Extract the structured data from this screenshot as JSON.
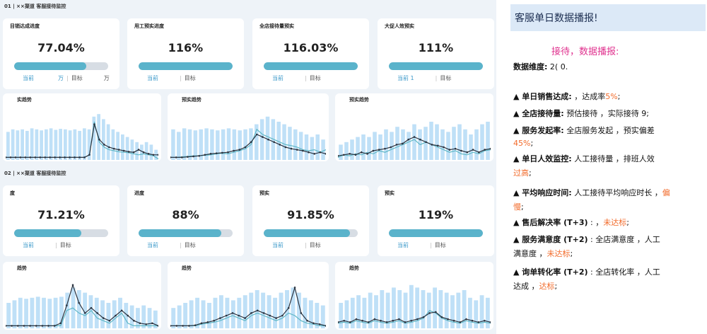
{
  "sections": [
    {
      "title": "01 | ××渠道 客服接待监控",
      "kpis": [
        {
          "label": "目销达成进度",
          "value": "77.04%",
          "fill": 0.7704,
          "current": "当前",
          "current_suffix": "万",
          "target": "目标",
          "target_suffix": "万"
        },
        {
          "label": "用工预实进度",
          "value": "116%",
          "fill": 1.0,
          "current": "当前",
          "current_suffix": "",
          "target": "目标",
          "target_suffix": ""
        },
        {
          "label": "全店接待量预实",
          "value": "116.03%",
          "fill": 1.0,
          "current": "当前",
          "current_suffix": "",
          "target": "目标",
          "target_suffix": ""
        },
        {
          "label": "大促人效预实",
          "value": "111%",
          "fill": 1.0,
          "current": "当前 1",
          "current_suffix": "",
          "target": "目标",
          "target_suffix": ""
        }
      ],
      "charts": [
        {
          "title": "实趋势"
        },
        {
          "title": "预实趋势"
        },
        {
          "title": "预实趋势"
        }
      ]
    },
    {
      "title": "02 | ××渠道 客服接待监控",
      "kpis": [
        {
          "label": "度",
          "value": "71.21%",
          "fill": 0.7121,
          "current": "当前",
          "current_suffix": "",
          "target": "目标",
          "target_suffix": ""
        },
        {
          "label": "进度",
          "value": "88%",
          "fill": 0.88,
          "current": "当前",
          "current_suffix": "",
          "target": "目标",
          "target_suffix": ""
        },
        {
          "label": "预实",
          "value": "91.85%",
          "fill": 0.9185,
          "current": "当前",
          "current_suffix": "",
          "target": "目标",
          "target_suffix": ""
        },
        {
          "label": "预实",
          "value": "119%",
          "fill": 1.0,
          "current": "当前",
          "current_suffix": "",
          "target": "目标",
          "target_suffix": ""
        }
      ],
      "charts": [
        {
          "title": "趋势"
        },
        {
          "title": "趋势"
        },
        {
          "title": "趋势"
        }
      ]
    }
  ],
  "report": {
    "header": "客服单日数据播报!",
    "intro": "接待，数据播报:",
    "dimension_label": "数据维度:",
    "dimension_value": "2(       0.",
    "items": [
      {
        "lines": [
          [
            "▲ 单日销售达成:",
            "bold"
          ],
          [
            "          ，达成率",
            ""
          ],
          [
            "5%",
            "orange"
          ],
          [
            ";",
            ""
          ]
        ]
      },
      {
        "lines": [
          [
            "▲ 全店接待量:",
            "bold"
          ],
          [
            " 预估接待       ，实际接待    9;",
            ""
          ]
        ]
      },
      {
        "lines": [
          [
            "▲ 服务发起率:",
            "bold"
          ],
          [
            " 全店服务发起       ，预实偏差",
            ""
          ]
        ],
        "cont": [
          [
            "45%",
            "orange"
          ],
          [
            ";",
            ""
          ]
        ]
      },
      {
        "lines": [
          [
            "▲ 单日人效监控:",
            "bold"
          ],
          [
            " 人工接待量      ，排班人效",
            ""
          ]
        ],
        "cont": [
          [
            "过高",
            "orange"
          ],
          [
            ";",
            ""
          ]
        ]
      },
      {
        "lines": [
          [
            "▲ 平均响应时间:",
            "bold"
          ],
          [
            " 人工接待平均响应时长      ，",
            ""
          ],
          [
            "偏",
            "orange"
          ]
        ],
        "cont": [
          [
            "慢",
            "orange"
          ],
          [
            ";",
            ""
          ]
        ]
      },
      {
        "lines": [
          [
            "▲ 售后解决率 (T+3)",
            "bold"
          ],
          [
            " :          ，",
            ""
          ],
          [
            "未达标",
            "orange"
          ],
          [
            ";",
            ""
          ]
        ]
      },
      {
        "lines": [
          [
            "▲ 服务满意度 (T+2)",
            "bold"
          ],
          [
            " : 全店满意度      ，人工",
            ""
          ]
        ],
        "cont": [
          [
            "满意度        ，",
            ""
          ],
          [
            "未达标",
            "orange"
          ],
          [
            ";",
            ""
          ]
        ]
      },
      {
        "lines": [
          [
            "▲ 询单转化率 (T+2)",
            "bold"
          ],
          [
            " : 全店转化率      ，人工",
            ""
          ]
        ],
        "cont": [
          [
            "达成        ，",
            ""
          ],
          [
            "达标",
            "orange"
          ],
          [
            ";",
            ""
          ]
        ]
      }
    ]
  },
  "colors": {
    "bar_fill": "#5ab3cb",
    "bar_track": "#d7dde4",
    "chart_bar": "#bfe0f7",
    "line_dark": "#2b3440",
    "line_teal": "#5fb7c6",
    "accent_orange": "#f26b2b",
    "accent_pink": "#e0338f"
  },
  "chart_data": [
    {
      "type": "bar",
      "bars": [
        0.55,
        0.6,
        0.58,
        0.6,
        0.57,
        0.62,
        0.6,
        0.58,
        0.6,
        0.62,
        0.59,
        0.61,
        0.6,
        0.58,
        0.6,
        0.57,
        0.62,
        0.6,
        0.85,
        0.9,
        0.8,
        0.7,
        0.6,
        0.55,
        0.5,
        0.45,
        0.4,
        0.35,
        0.3,
        0.35,
        0.3,
        0.2
      ],
      "series": [
        {
          "values": [
            0.05,
            0.05,
            0.05,
            0.05,
            0.05,
            0.05,
            0.05,
            0.05,
            0.05,
            0.05,
            0.05,
            0.05,
            0.05,
            0.05,
            0.05,
            0.05,
            0.05,
            0.1,
            0.75,
            0.35,
            0.25,
            0.2,
            0.18,
            0.16,
            0.15,
            0.14,
            0.12,
            0.1,
            0.12,
            0.1,
            0.08,
            0.02
          ]
        },
        {
          "values": [
            0.05,
            0.05,
            0.05,
            0.05,
            0.05,
            0.05,
            0.05,
            0.05,
            0.05,
            0.05,
            0.05,
            0.05,
            0.05,
            0.05,
            0.05,
            0.05,
            0.05,
            0.1,
            0.7,
            0.4,
            0.3,
            0.25,
            0.22,
            0.2,
            0.18,
            0.16,
            0.15,
            0.2,
            0.15,
            0.12,
            0.1,
            0.1
          ]
        }
      ]
    },
    {
      "type": "bar",
      "bars": [
        0.6,
        0.55,
        0.62,
        0.6,
        0.58,
        0.6,
        0.62,
        0.6,
        0.58,
        0.6,
        0.62,
        0.6,
        0.58,
        0.6,
        0.62,
        0.7,
        0.8,
        0.85,
        0.8,
        0.75,
        0.7,
        0.65,
        0.6,
        0.55,
        0.5,
        0.45,
        0.5,
        0.4
      ],
      "series": [
        {
          "values": [
            0.05,
            0.05,
            0.06,
            0.07,
            0.08,
            0.08,
            0.09,
            0.1,
            0.12,
            0.13,
            0.12,
            0.15,
            0.18,
            0.22,
            0.3,
            0.6,
            0.5,
            0.45,
            0.4,
            0.35,
            0.3,
            0.28,
            0.25,
            0.2,
            0.18,
            0.2,
            0.15,
            0.2
          ]
        },
        {
          "values": [
            0.05,
            0.05,
            0.05,
            0.06,
            0.07,
            0.08,
            0.1,
            0.12,
            0.13,
            0.14,
            0.15,
            0.18,
            0.2,
            0.25,
            0.35,
            0.5,
            0.45,
            0.4,
            0.35,
            0.3,
            0.25,
            0.22,
            0.2,
            0.18,
            0.15,
            0.12,
            0.15,
            0.12
          ]
        }
      ]
    },
    {
      "type": "bar",
      "bars": [
        0.3,
        0.35,
        0.4,
        0.45,
        0.5,
        0.45,
        0.55,
        0.5,
        0.6,
        0.55,
        0.65,
        0.6,
        0.55,
        0.7,
        0.6,
        0.65,
        0.75,
        0.7,
        0.6,
        0.55,
        0.65,
        0.7,
        0.6,
        0.5,
        0.6,
        0.7,
        0.75
      ],
      "series": [
        {
          "values": [
            0.05,
            0.1,
            0.08,
            0.12,
            0.1,
            0.15,
            0.12,
            0.18,
            0.15,
            0.2,
            0.25,
            0.3,
            0.35,
            0.4,
            0.3,
            0.35,
            0.3,
            0.25,
            0.2,
            0.15,
            0.18,
            0.12,
            0.1,
            0.15,
            0.12,
            0.18,
            0.2
          ]
        },
        {
          "values": [
            0.08,
            0.1,
            0.12,
            0.1,
            0.15,
            0.12,
            0.18,
            0.2,
            0.22,
            0.25,
            0.3,
            0.32,
            0.4,
            0.45,
            0.4,
            0.35,
            0.3,
            0.28,
            0.25,
            0.2,
            0.22,
            0.18,
            0.15,
            0.2,
            0.15,
            0.2,
            0.22
          ]
        }
      ]
    },
    {
      "type": "bar",
      "bars": [
        0.5,
        0.55,
        0.6,
        0.58,
        0.6,
        0.62,
        0.6,
        0.58,
        0.6,
        0.62,
        0.7,
        0.8,
        0.75,
        0.7,
        0.65,
        0.6,
        0.55,
        0.5,
        0.55,
        0.6,
        0.5,
        0.45,
        0.4,
        0.45,
        0.4,
        0.35
      ],
      "series": [
        {
          "values": [
            0.05,
            0.05,
            0.05,
            0.05,
            0.05,
            0.05,
            0.05,
            0.05,
            0.05,
            0.05,
            0.35,
            0.4,
            0.3,
            0.25,
            0.35,
            0.2,
            0.15,
            0.1,
            0.2,
            0.3,
            0.1,
            0.05,
            0.05,
            0.05,
            0.05,
            0.05
          ]
        },
        {
          "values": [
            0.05,
            0.05,
            0.05,
            0.05,
            0.05,
            0.05,
            0.05,
            0.05,
            0.05,
            0.1,
            0.45,
            0.85,
            0.5,
            0.3,
            0.4,
            0.3,
            0.2,
            0.15,
            0.25,
            0.35,
            0.25,
            0.15,
            0.1,
            0.08,
            0.1,
            0.05
          ]
        }
      ]
    },
    {
      "type": "bar",
      "bars": [
        0.4,
        0.45,
        0.5,
        0.55,
        0.6,
        0.55,
        0.5,
        0.6,
        0.65,
        0.6,
        0.55,
        0.6,
        0.65,
        0.7,
        0.75,
        0.7,
        0.65,
        0.6,
        0.7,
        0.75,
        0.8,
        0.7,
        0.6,
        0.55,
        0.5,
        0.45
      ],
      "series": [
        {
          "values": [
            0.05,
            0.05,
            0.05,
            0.05,
            0.05,
            0.08,
            0.1,
            0.12,
            0.15,
            0.2,
            0.25,
            0.2,
            0.15,
            0.25,
            0.3,
            0.25,
            0.2,
            0.15,
            0.2,
            0.3,
            0.25,
            0.15,
            0.1,
            0.08,
            0.05,
            0.05
          ]
        },
        {
          "values": [
            0.05,
            0.05,
            0.05,
            0.05,
            0.06,
            0.1,
            0.12,
            0.15,
            0.2,
            0.25,
            0.3,
            0.25,
            0.2,
            0.3,
            0.35,
            0.3,
            0.25,
            0.2,
            0.25,
            0.4,
            0.8,
            0.3,
            0.15,
            0.1,
            0.08,
            0.05
          ]
        }
      ]
    },
    {
      "type": "bar",
      "bars": [
        0.5,
        0.55,
        0.6,
        0.65,
        0.6,
        0.7,
        0.65,
        0.75,
        0.7,
        0.8,
        0.75,
        0.7,
        0.85,
        0.8,
        0.75,
        0.7,
        0.8,
        0.75,
        0.7,
        0.65,
        0.7,
        0.75,
        0.6,
        0.55,
        0.65,
        0.6
      ],
      "series": [
        {
          "values": [
            0.1,
            0.12,
            0.1,
            0.15,
            0.12,
            0.1,
            0.15,
            0.12,
            0.1,
            0.12,
            0.15,
            0.1,
            0.12,
            0.15,
            0.2,
            0.35,
            0.3,
            0.2,
            0.15,
            0.12,
            0.1,
            0.15,
            0.12,
            0.1,
            0.12,
            0.1
          ]
        },
        {
          "values": [
            0.12,
            0.15,
            0.12,
            0.18,
            0.15,
            0.12,
            0.18,
            0.15,
            0.12,
            0.15,
            0.18,
            0.12,
            0.15,
            0.18,
            0.22,
            0.3,
            0.32,
            0.22,
            0.18,
            0.15,
            0.12,
            0.18,
            0.15,
            0.12,
            0.15,
            0.12
          ]
        }
      ]
    }
  ]
}
